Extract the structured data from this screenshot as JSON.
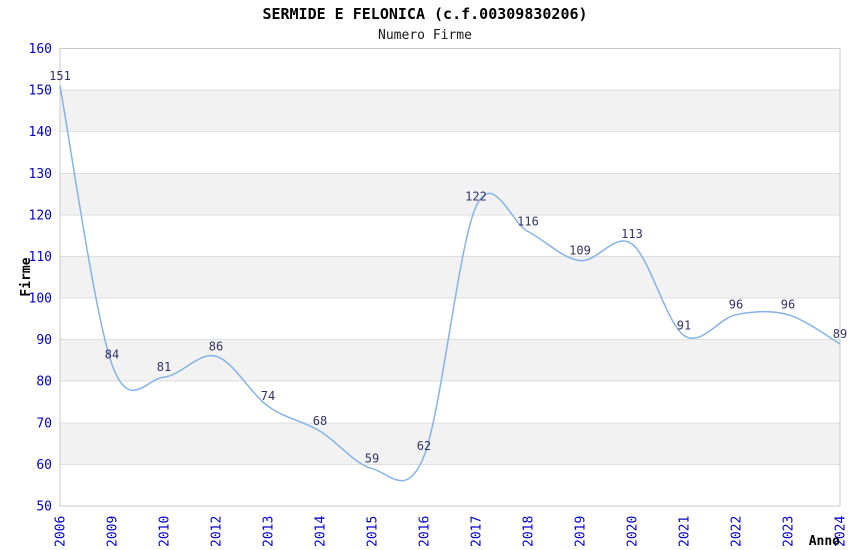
{
  "chart_data": {
    "type": "line",
    "title": "SERMIDE E FELONICA (c.f.00309830206)",
    "subtitle": "Numero Firme",
    "xlabel": "Anno",
    "ylabel": "Firme",
    "categories": [
      "2006",
      "2009",
      "2010",
      "2012",
      "2013",
      "2014",
      "2015",
      "2016",
      "2017",
      "2018",
      "2019",
      "2020",
      "2021",
      "2022",
      "2023",
      "2024"
    ],
    "series": [
      {
        "name": "Numero Firme",
        "values": [
          151,
          84,
          81,
          86,
          74,
          68,
          59,
          62,
          122,
          116,
          109,
          113,
          91,
          96,
          96,
          89
        ]
      }
    ],
    "ylim": [
      50,
      160
    ],
    "ytick_step": 10,
    "grid": "horizontal",
    "bands": "alternating-gray",
    "legend": "none",
    "point_labels": "shown",
    "colors": {
      "line": "#85b3e8",
      "tick_label": "#0000cd",
      "point_label": "#333366",
      "band": "#f2f2f2",
      "grid": "#dedede",
      "border": "#c9c9c9",
      "axis_title": "#000000",
      "background": "#ffffff"
    }
  }
}
